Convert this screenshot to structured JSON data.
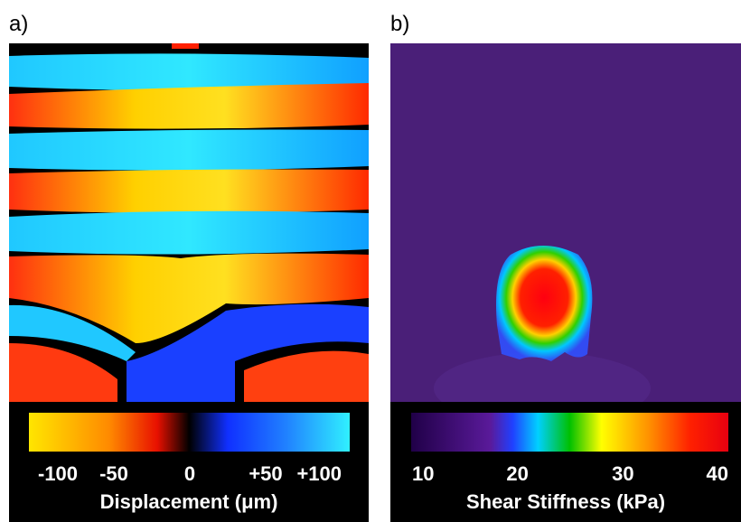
{
  "panels": [
    {
      "label": "a)",
      "colorbar": {
        "ticks": [
          "-100",
          "-50",
          "0",
          "+50",
          "+100"
        ],
        "title": "Displacement (μm)"
      }
    },
    {
      "label": "b)",
      "colorbar": {
        "ticks": [
          "10",
          "20",
          "30",
          "40"
        ],
        "title": "Shear Stiffness (kPa)"
      }
    }
  ]
}
